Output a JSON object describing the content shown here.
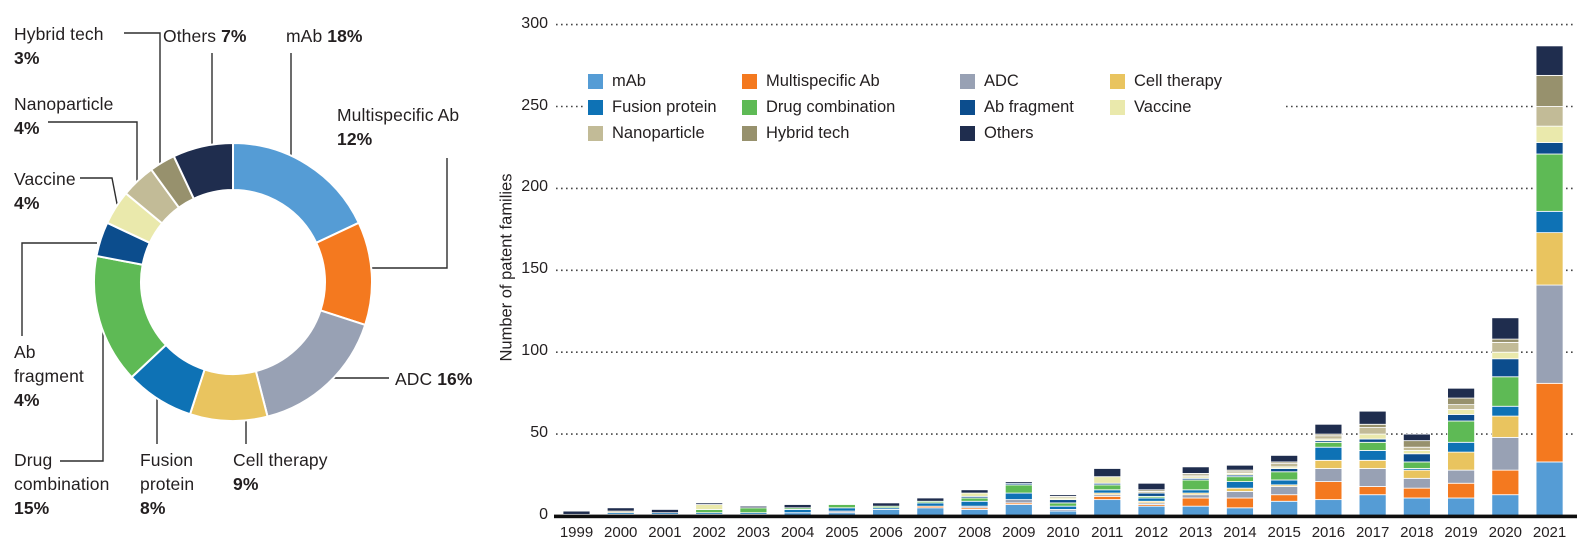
{
  "figure": {
    "background": "#ffffff",
    "text_color": "#231f20",
    "axis_color": "#111111",
    "gridline_color": "#474747"
  },
  "chart_data": [
    {
      "type": "pie",
      "donut": true,
      "title": "",
      "labels": [
        "mAb",
        "Multispecific Ab",
        "ADC",
        "Cell therapy",
        "Fusion protein",
        "Drug combination",
        "Ab fragment",
        "Vaccine",
        "Nanoparticle",
        "Hybrid tech",
        "Others"
      ],
      "pct_labels": [
        "18%",
        "12%",
        "16%",
        "9%",
        "8%",
        "15%",
        "4%",
        "4%",
        "4%",
        "3%",
        "7%"
      ],
      "values": [
        18,
        12,
        16,
        9,
        8,
        15,
        4,
        4,
        4,
        3,
        7
      ],
      "colors": [
        "#559cd5",
        "#f4791f",
        "#98a1b4",
        "#e9c45f",
        "#0e72b5",
        "#5eba55",
        "#0c4d8d",
        "#eae9ac",
        "#c2bb97",
        "#97916d",
        "#1f2d4e"
      ]
    },
    {
      "type": "bar",
      "stacked": true,
      "title": "",
      "xlabel": "",
      "ylabel": "Number of patent families",
      "ylim": [
        0,
        300
      ],
      "yticks": [
        0,
        50,
        100,
        150,
        200,
        250,
        300
      ],
      "grid": "dotted-horizontal",
      "legend_position": "top-inside",
      "categories": [
        "1999",
        "2000",
        "2001",
        "2002",
        "2003",
        "2004",
        "2005",
        "2006",
        "2007",
        "2008",
        "2009",
        "2010",
        "2011",
        "2012",
        "2013",
        "2014",
        "2015",
        "2016",
        "2017",
        "2018",
        "2019",
        "2020",
        "2021"
      ],
      "series": [
        {
          "name": "mAb",
          "color": "#559cd5",
          "values": [
            1,
            1,
            1,
            1,
            1,
            2,
            2,
            4,
            5,
            4,
            7,
            3,
            10,
            6,
            6,
            5,
            9,
            10,
            13,
            11,
            11,
            13,
            33
          ]
        },
        {
          "name": "Multispecific Ab",
          "color": "#f4791f",
          "values": [
            0,
            0,
            0,
            0,
            0,
            0,
            0,
            0,
            1,
            1,
            1,
            0,
            2,
            1,
            5,
            6,
            4,
            11,
            5,
            6,
            9,
            15,
            48
          ]
        },
        {
          "name": "ADC",
          "color": "#98a1b4",
          "values": [
            0,
            0,
            0,
            0,
            0,
            0,
            1,
            0,
            0,
            1,
            2,
            1,
            1,
            1,
            2,
            4,
            5,
            8,
            11,
            6,
            8,
            20,
            60
          ]
        },
        {
          "name": "Cell therapy",
          "color": "#e9c45f",
          "values": [
            0,
            0,
            0,
            0,
            0,
            0,
            0,
            0,
            0,
            0,
            0,
            0,
            1,
            1,
            1,
            2,
            1,
            5,
            5,
            5,
            11,
            13,
            32
          ]
        },
        {
          "name": "Fusion protein",
          "color": "#0e72b5",
          "values": [
            0,
            1,
            1,
            1,
            1,
            2,
            2,
            1,
            2,
            3,
            4,
            2,
            2,
            2,
            2,
            4,
            3,
            8,
            6,
            1,
            6,
            6,
            13
          ]
        },
        {
          "name": "Drug combination",
          "color": "#5eba55",
          "values": [
            0,
            0,
            0,
            2,
            3,
            1,
            2,
            1,
            1,
            2,
            5,
            2,
            3,
            1,
            6,
            3,
            5,
            3,
            5,
            4,
            13,
            18,
            35
          ]
        },
        {
          "name": "Ab fragment",
          "color": "#0c4d8d",
          "values": [
            0,
            0,
            0,
            0,
            0,
            0,
            0,
            0,
            0,
            1,
            1,
            2,
            1,
            2,
            1,
            1,
            2,
            1,
            2,
            5,
            4,
            11,
            7
          ]
        },
        {
          "name": "Vaccine",
          "color": "#eae9ac",
          "values": [
            0,
            0,
            0,
            3,
            0,
            0,
            0,
            0,
            0,
            2,
            0,
            1,
            4,
            0,
            1,
            1,
            1,
            1,
            3,
            2,
            3,
            4,
            10
          ]
        },
        {
          "name": "Nanoparticle",
          "color": "#c2bb97",
          "values": [
            0,
            1,
            0,
            0,
            0,
            0,
            0,
            0,
            0,
            0,
            0,
            1,
            0,
            1,
            1,
            1,
            2,
            2,
            4,
            2,
            3,
            6,
            12
          ]
        },
        {
          "name": "Hybrid tech",
          "color": "#97916d",
          "values": [
            0,
            0,
            0,
            0,
            0,
            0,
            0,
            0,
            0,
            0,
            0,
            0,
            0,
            1,
            1,
            1,
            1,
            1,
            2,
            4,
            4,
            2,
            19
          ]
        },
        {
          "name": "Others",
          "color": "#1f2d4e",
          "values": [
            2,
            2,
            2,
            1,
            1,
            2,
            0,
            2,
            2,
            2,
            1,
            1,
            5,
            4,
            4,
            3,
            4,
            6,
            8,
            4,
            6,
            13,
            18
          ]
        }
      ]
    }
  ]
}
